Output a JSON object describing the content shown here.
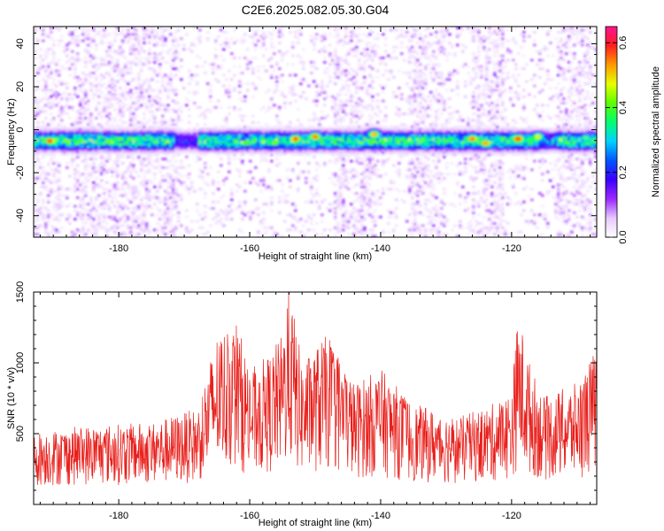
{
  "title": "C2E6.2025.082.05.30.G04",
  "colors": {
    "snr_line": "#e8201c",
    "axes": "#000000"
  },
  "chart_data": [
    {
      "type": "heatmap",
      "xlabel": "Height of straight line (km)",
      "ylabel": "Frequency (Hz)",
      "xlim": [
        -193,
        -107
      ],
      "ylim": [
        -50,
        48
      ],
      "x_ticks": [
        -180,
        -160,
        -140,
        -120
      ],
      "y_ticks": [
        -40,
        -20,
        0,
        20,
        40
      ],
      "colorbar": {
        "label": "Normalized spectral amplitude",
        "range": [
          0,
          0.65
        ],
        "ticks": [
          "0.0",
          "0.2",
          "0.4",
          "0.6"
        ],
        "colormap": [
          "#ffffff",
          "#e6c8ff",
          "#9a28ff",
          "#3a00ff",
          "#0055ff",
          "#00d2ff",
          "#00ff70",
          "#5aff00",
          "#e6ff00",
          "#ff9a00",
          "#ff1e1e",
          "#ff1493"
        ]
      },
      "band": {
        "center_hz": -5,
        "halfwidth_hz": 5
      },
      "peaks": [
        {
          "x": -190.5,
          "y": -5,
          "v": 0.6
        },
        {
          "x": -153,
          "y": -4,
          "v": 0.6
        },
        {
          "x": -150,
          "y": -3,
          "v": 0.58
        },
        {
          "x": -141,
          "y": -2,
          "v": 0.55
        },
        {
          "x": -126,
          "y": -4,
          "v": 0.58
        },
        {
          "x": -124,
          "y": -6,
          "v": 0.56
        },
        {
          "x": -119,
          "y": -4,
          "v": 0.62
        },
        {
          "x": -116,
          "y": -3,
          "v": 0.5
        }
      ]
    },
    {
      "type": "line",
      "xlabel": "Height of straight line (km)",
      "ylabel": "SNR (10 * v/v)",
      "xlim": [
        -193,
        -107
      ],
      "ylim": [
        0,
        1500
      ],
      "x_ticks": [
        -180,
        -160,
        -140,
        -120
      ],
      "y_ticks": [
        500,
        1000,
        1500
      ],
      "envelope": [
        {
          "x": -193,
          "y": 450
        },
        {
          "x": -185,
          "y": 500
        },
        {
          "x": -175,
          "y": 520
        },
        {
          "x": -168,
          "y": 620
        },
        {
          "x": -165,
          "y": 1150
        },
        {
          "x": -162,
          "y": 1250
        },
        {
          "x": -160,
          "y": 900
        },
        {
          "x": -157,
          "y": 1000
        },
        {
          "x": -155,
          "y": 1150
        },
        {
          "x": -154,
          "y": 1500
        },
        {
          "x": -152,
          "y": 950
        },
        {
          "x": -148,
          "y": 1150
        },
        {
          "x": -144,
          "y": 800
        },
        {
          "x": -140,
          "y": 900
        },
        {
          "x": -135,
          "y": 650
        },
        {
          "x": -128,
          "y": 560
        },
        {
          "x": -123,
          "y": 650
        },
        {
          "x": -120,
          "y": 750
        },
        {
          "x": -119,
          "y": 1300
        },
        {
          "x": -117,
          "y": 900
        },
        {
          "x": -115,
          "y": 700
        },
        {
          "x": -110,
          "y": 800
        },
        {
          "x": -107,
          "y": 1050
        }
      ]
    }
  ]
}
